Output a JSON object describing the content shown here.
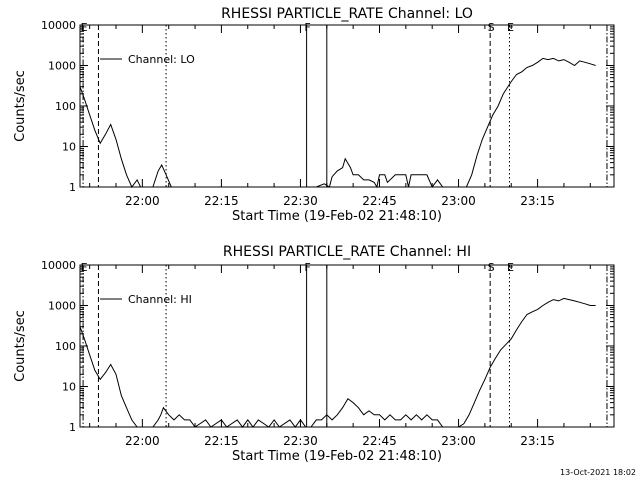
{
  "footer": {
    "timestamp": "13-Oct-2021 18:02"
  },
  "chart_data": [
    {
      "type": "line",
      "title": "RHESSI PARTICLE_RATE Channel: LO",
      "xlabel": "Start Time (19-Feb-02 21:48:10)",
      "ylabel": "Counts/sec",
      "yscale": "log",
      "ylim": [
        1,
        10000
      ],
      "xlim": [
        "21:48:10",
        "23:29:30"
      ],
      "x_ticks": [
        "22:00",
        "22:15",
        "22:30",
        "22:45",
        "23:00",
        "23:15"
      ],
      "y_ticks": [
        "1",
        "10",
        "100",
        "1000",
        "10000"
      ],
      "legend": "top-left",
      "series": [
        {
          "name": "Channel: LO",
          "x": [
            "21:48:10",
            "21:49:00",
            "21:50:00",
            "21:51:00",
            "21:52:00",
            "21:53:00",
            "21:54:00",
            "21:55:00",
            "21:56:00",
            "21:57:00",
            "21:58:00",
            "21:59:00",
            "21:59:40",
            "22:00:30",
            "22:02:00",
            "22:03:00",
            "22:03:40",
            "22:04:30",
            "22:05:30",
            "22:07:00",
            "22:10:00",
            "22:20:00",
            "22:30:00",
            "22:33:00",
            "22:34:30",
            "22:35:30",
            "22:36:00",
            "22:37:00",
            "22:38:00",
            "22:38:30",
            "22:39:30",
            "22:40:00",
            "22:41:00",
            "22:42:00",
            "22:43:00",
            "22:44:00",
            "22:44:30",
            "22:45:00",
            "22:46:00",
            "22:46:30",
            "22:48:00",
            "22:48:30",
            "22:50:00",
            "22:50:30",
            "22:51:00",
            "22:52:00",
            "22:53:00",
            "22:54:00",
            "22:55:00",
            "22:56:00",
            "22:57:00",
            "22:58:00",
            "22:59:00",
            "23:00:00",
            "23:01:30",
            "23:02:30",
            "23:03:30",
            "23:04:30",
            "23:05:30",
            "23:06:30",
            "23:07:30",
            "23:08:30",
            "23:10:00",
            "23:11:00",
            "23:12:00",
            "23:13:00",
            "23:14:00",
            "23:15:00",
            "23:16:00",
            "23:17:00",
            "23:18:00",
            "23:19:00",
            "23:20:00",
            "23:21:00",
            "23:22:00",
            "23:23:00",
            "23:24:00",
            "23:25:00",
            "23:26:00"
          ],
          "values": [
            300,
            150,
            60,
            25,
            12,
            20,
            35,
            15,
            5,
            2,
            1,
            1.5,
            1,
            1,
            1,
            2.5,
            3.5,
            2,
            1,
            1,
            1,
            1,
            1,
            1,
            1.2,
            1,
            1.8,
            2.5,
            3,
            5,
            3,
            2,
            2,
            1.5,
            1.5,
            1.3,
            1,
            2,
            2,
            1.3,
            2,
            2,
            2,
            1,
            2,
            2,
            2,
            2,
            1,
            1.5,
            1,
            1,
            1,
            1,
            1,
            2,
            6,
            15,
            30,
            60,
            100,
            200,
            400,
            600,
            700,
            900,
            1000,
            1200,
            1500,
            1400,
            1500,
            1300,
            1400,
            1200,
            1000,
            1300,
            1200,
            1100,
            1000
          ]
        }
      ],
      "markers": [
        {
          "label": "E",
          "x": "21:48:45",
          "style": "dash-dot"
        },
        {
          "label": "",
          "x": "21:51:40",
          "style": "dashed"
        },
        {
          "label": "",
          "x": "22:04:30",
          "style": "dotted"
        },
        {
          "label": "F",
          "x": "22:31:10",
          "style": "solid"
        },
        {
          "label": "",
          "x": "22:35:00",
          "style": "solid"
        },
        {
          "label": "S",
          "x": "23:06:00",
          "style": "dashed"
        },
        {
          "label": "E",
          "x": "23:09:40",
          "style": "dotted"
        },
        {
          "label": "",
          "x": "23:28:10",
          "style": "dash-dot"
        }
      ]
    },
    {
      "type": "line",
      "title": "RHESSI PARTICLE_RATE Channel: HI",
      "xlabel": "Start Time (19-Feb-02 21:48:10)",
      "ylabel": "Counts/sec",
      "yscale": "log",
      "ylim": [
        1,
        10000
      ],
      "xlim": [
        "21:48:10",
        "23:29:30"
      ],
      "x_ticks": [
        "22:00",
        "22:15",
        "22:30",
        "22:45",
        "23:00",
        "23:15"
      ],
      "y_ticks": [
        "1",
        "10",
        "100",
        "1000",
        "10000"
      ],
      "legend": "top-left",
      "series": [
        {
          "name": "Channel: HI",
          "x": [
            "21:48:10",
            "21:49:00",
            "21:50:00",
            "21:51:00",
            "21:52:00",
            "21:53:00",
            "21:54:00",
            "21:55:00",
            "21:56:00",
            "21:57:00",
            "21:58:00",
            "21:59:00",
            "22:00:30",
            "22:02:00",
            "22:03:00",
            "22:03:30",
            "22:04:00",
            "22:05:00",
            "22:06:00",
            "22:07:00",
            "22:08:00",
            "22:09:00",
            "22:10:00",
            "22:12:00",
            "22:13:00",
            "22:15:00",
            "22:16:00",
            "22:18:00",
            "22:19:00",
            "22:20:00",
            "22:21:00",
            "22:22:00",
            "22:24:00",
            "22:25:00",
            "22:26:00",
            "22:28:00",
            "22:29:00",
            "22:30:00",
            "22:31:00",
            "22:32:00",
            "22:33:00",
            "22:34:00",
            "22:35:00",
            "22:36:00",
            "22:37:00",
            "22:38:00",
            "22:39:00",
            "22:40:00",
            "22:41:00",
            "22:42:00",
            "22:43:00",
            "22:44:00",
            "22:45:00",
            "22:46:00",
            "22:47:00",
            "22:48:00",
            "22:49:00",
            "22:50:00",
            "22:51:00",
            "22:52:00",
            "22:53:00",
            "22:54:00",
            "22:55:00",
            "22:56:00",
            "22:57:00",
            "22:58:00",
            "22:59:00",
            "23:00:00",
            "23:01:00",
            "23:02:00",
            "23:03:00",
            "23:04:00",
            "23:05:00",
            "23:06:00",
            "23:07:00",
            "23:08:00",
            "23:10:00",
            "23:11:00",
            "23:12:00",
            "23:13:00",
            "23:14:00",
            "23:15:00",
            "23:16:00",
            "23:17:00",
            "23:18:00",
            "23:19:00",
            "23:20:00",
            "23:21:00",
            "23:22:00",
            "23:23:00",
            "23:24:00",
            "23:25:00",
            "23:26:00"
          ],
          "values": [
            300,
            150,
            60,
            25,
            15,
            22,
            35,
            20,
            6,
            3,
            1.5,
            1,
            1,
            1,
            1.5,
            2,
            3,
            2,
            1.5,
            2,
            1.5,
            1.5,
            1,
            1.5,
            1,
            1.5,
            1,
            1.5,
            1,
            1.5,
            1,
            1.5,
            1,
            1.5,
            1,
            1.5,
            1,
            1.5,
            1,
            1,
            1.5,
            1.5,
            2,
            1.5,
            2,
            3,
            5,
            4,
            3,
            2,
            2.5,
            2,
            2,
            1.5,
            2,
            1.5,
            1.5,
            2,
            1.5,
            2,
            1.5,
            2,
            1.5,
            1.5,
            1,
            1,
            1,
            1,
            1.2,
            2,
            4,
            8,
            15,
            30,
            50,
            80,
            150,
            250,
            400,
            600,
            700,
            800,
            1000,
            1200,
            1400,
            1300,
            1500,
            1400,
            1300,
            1200,
            1100,
            1000,
            1000
          ]
        }
      ],
      "markers": [
        {
          "label": "E",
          "x": "21:48:45",
          "style": "dash-dot"
        },
        {
          "label": "",
          "x": "21:51:40",
          "style": "dashed"
        },
        {
          "label": "",
          "x": "22:04:30",
          "style": "dotted"
        },
        {
          "label": "F",
          "x": "22:31:10",
          "style": "solid"
        },
        {
          "label": "",
          "x": "22:35:00",
          "style": "solid"
        },
        {
          "label": "S",
          "x": "23:06:00",
          "style": "dashed"
        },
        {
          "label": "E",
          "x": "23:09:40",
          "style": "dotted"
        },
        {
          "label": "",
          "x": "23:28:10",
          "style": "dash-dot"
        }
      ]
    }
  ]
}
